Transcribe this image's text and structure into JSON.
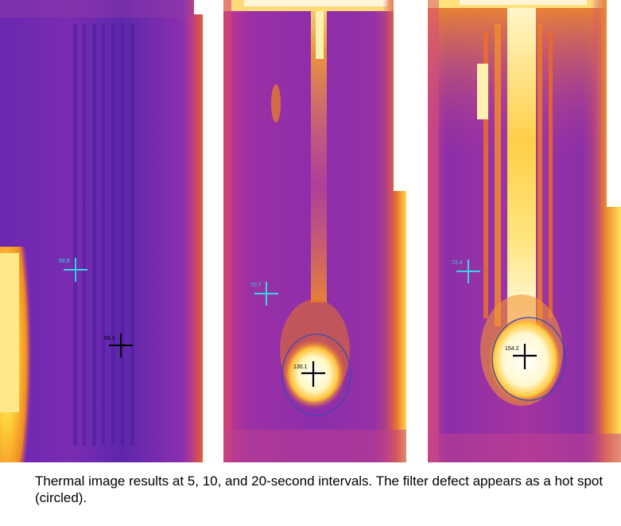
{
  "panels": [
    {
      "interval": "5",
      "readings": {
        "reference": "68.8",
        "defect": "68.1"
      },
      "colors": {
        "reference_marker": "#33d6e8",
        "defect_marker": "#000000"
      }
    },
    {
      "interval": "10",
      "readings": {
        "reference": "70.7",
        "defect": "130.1"
      },
      "colors": {
        "reference_marker": "#33d6e8",
        "defect_marker": "#000000"
      }
    },
    {
      "interval": "20",
      "readings": {
        "reference": "72.4",
        "defect": "154.2"
      },
      "colors": {
        "reference_marker": "#33d6e8",
        "defect_marker": "#000000"
      }
    }
  ],
  "palette": {
    "cold": "#5a22a8",
    "mid": "#b82fa0",
    "warm": "#e8701f",
    "hot": "#ffd84a",
    "white": "#fffbe0"
  },
  "caption": "Thermal image results at 5, 10, and 20-second intervals. The filter defect appears as a hot spot (circled)."
}
